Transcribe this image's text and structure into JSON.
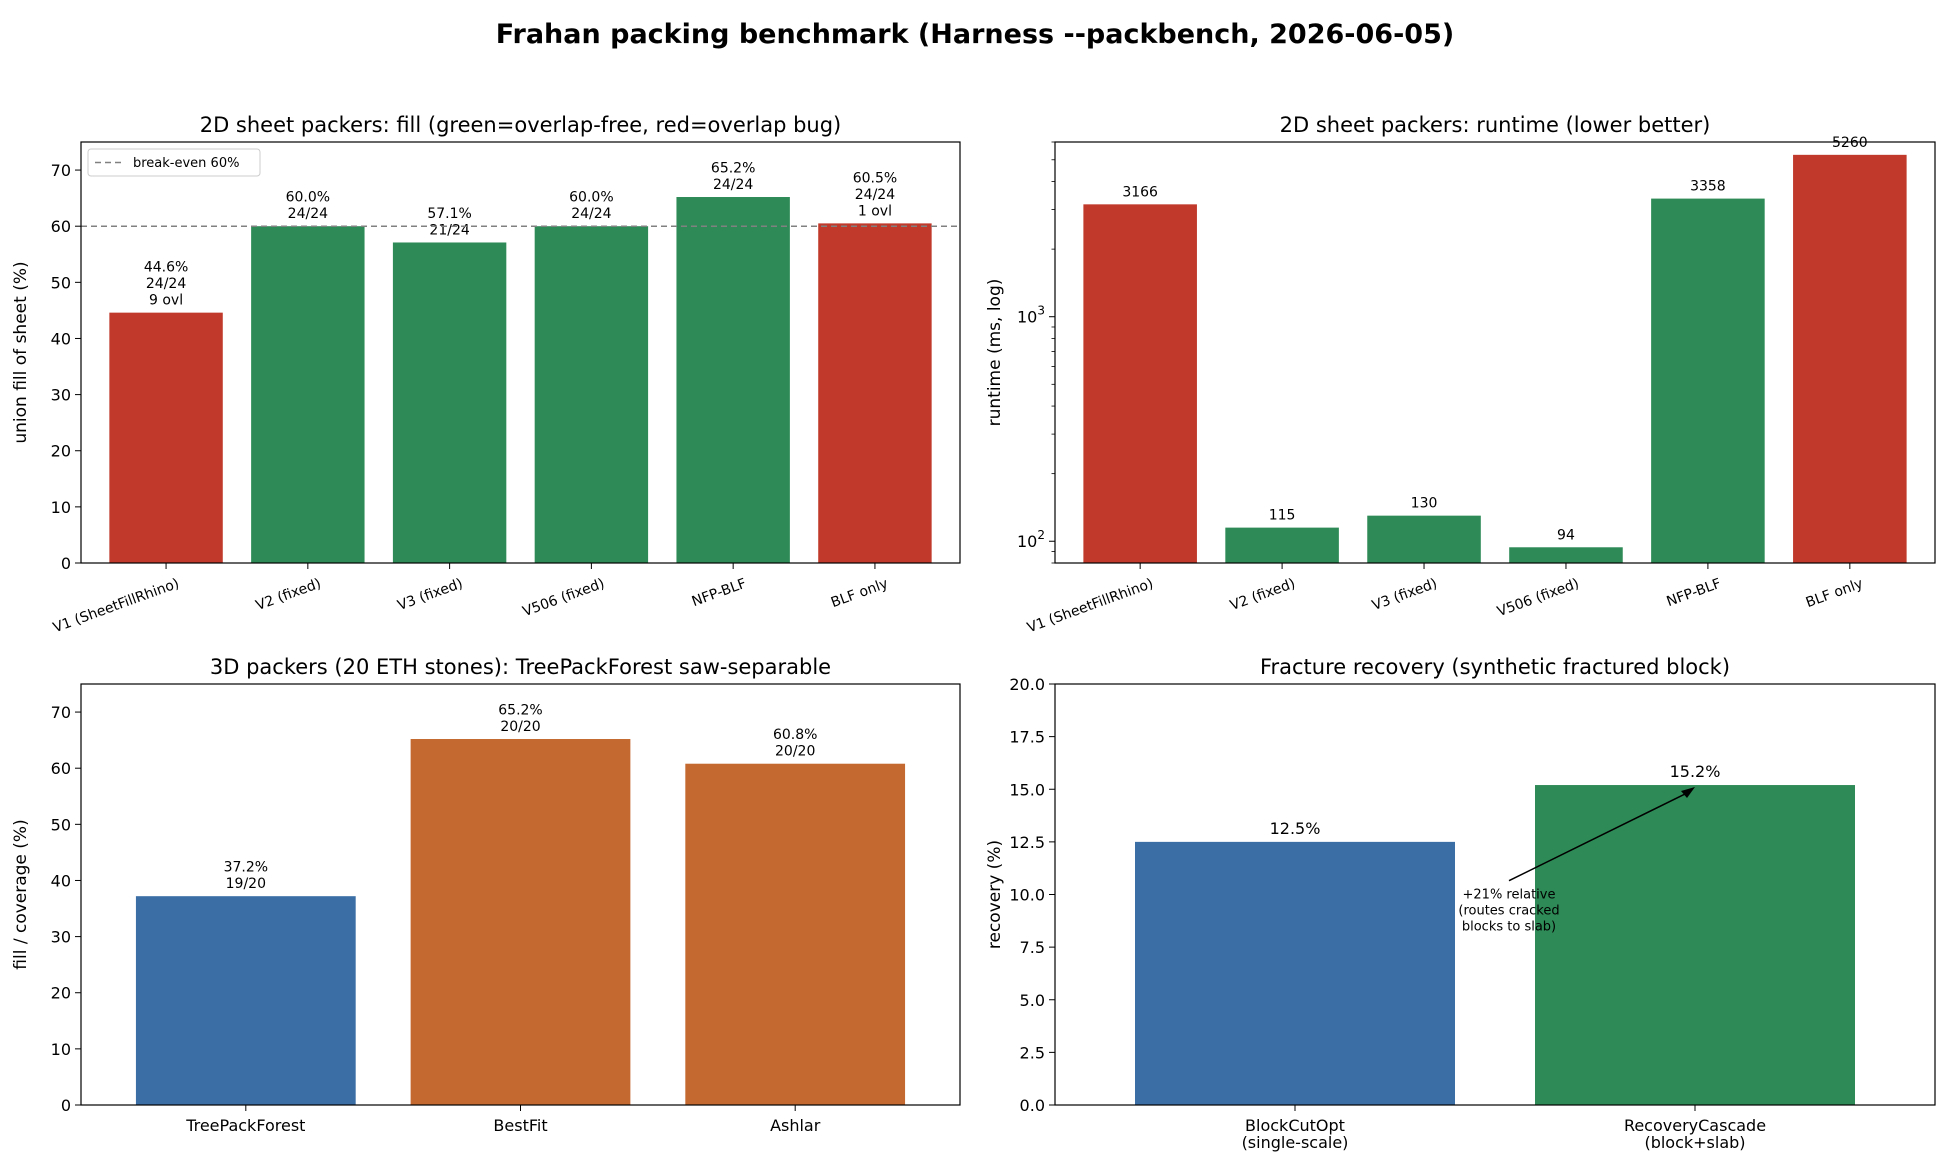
{
  "figure": {
    "suptitle": "Frahan packing benchmark (Harness --packbench, 2026-06-05)"
  },
  "colors": {
    "red": "#c0392b",
    "green": "#2e8b57",
    "blue": "#3a6ea5",
    "orange": "#c46a30",
    "refline": "#808080"
  },
  "chart_data": [
    {
      "id": "fill2d",
      "type": "bar",
      "title": "2D sheet packers: fill (green=overlap-free, red=overlap bug)",
      "xlabel": "",
      "ylabel": "union fill of sheet (%)",
      "ylim": [
        0,
        75
      ],
      "yticks": [
        0,
        10,
        20,
        30,
        40,
        50,
        60,
        70
      ],
      "categories": [
        "V1 (SheetFillRhino)",
        "V2 (fixed)",
        "V3 (fixed)",
        "V506 (fixed)",
        "NFP-BLF",
        "BLF only"
      ],
      "values": [
        44.6,
        60.0,
        57.1,
        60.0,
        65.2,
        60.5
      ],
      "bar_colors": [
        "red",
        "green",
        "green",
        "green",
        "green",
        "red"
      ],
      "labels": [
        [
          "44.6%",
          "24/24",
          "9 ovl"
        ],
        [
          "60.0%",
          "24/24"
        ],
        [
          "57.1%",
          "21/24"
        ],
        [
          "60.0%",
          "24/24"
        ],
        [
          "65.2%",
          "24/24"
        ],
        [
          "60.5%",
          "24/24",
          "1 ovl"
        ]
      ],
      "refline": {
        "value": 60,
        "label": "break-even 60%"
      },
      "legend": "upper-left",
      "xtick_rotation": -20
    },
    {
      "id": "runtime2d",
      "type": "bar",
      "title": "2D sheet packers: runtime (lower better)",
      "xlabel": "",
      "ylabel": "runtime (ms, log)",
      "yscale": "log",
      "ylim": [
        80,
        6000
      ],
      "categories": [
        "V1 (SheetFillRhino)",
        "V2 (fixed)",
        "V3 (fixed)",
        "V506 (fixed)",
        "NFP-BLF",
        "BLF only"
      ],
      "values": [
        3166,
        115,
        130,
        94,
        3358,
        5260
      ],
      "bar_colors": [
        "red",
        "green",
        "green",
        "green",
        "green",
        "red"
      ],
      "labels": [
        [
          "3166"
        ],
        [
          "115"
        ],
        [
          "130"
        ],
        [
          "94"
        ],
        [
          "3358"
        ],
        [
          "5260"
        ]
      ],
      "xtick_rotation": -20
    },
    {
      "id": "packers3d",
      "type": "bar",
      "title": "3D packers (20 ETH stones): TreePackForest saw-separable",
      "xlabel": "",
      "ylabel": "fill / coverage (%)",
      "ylim": [
        0,
        75
      ],
      "yticks": [
        0,
        10,
        20,
        30,
        40,
        50,
        60,
        70
      ],
      "categories": [
        "TreePackForest",
        "BestFit",
        "Ashlar"
      ],
      "values": [
        37.2,
        65.2,
        60.8
      ],
      "bar_colors": [
        "blue",
        "orange",
        "orange"
      ],
      "labels": [
        [
          "37.2%",
          "19/20"
        ],
        [
          "65.2%",
          "20/20"
        ],
        [
          "60.8%",
          "20/20"
        ]
      ]
    },
    {
      "id": "fracture",
      "type": "bar",
      "title": "Fracture recovery (synthetic fractured block)",
      "xlabel": "",
      "ylabel": "recovery (%)",
      "ylim": [
        0,
        20
      ],
      "yticks": [
        0.0,
        2.5,
        5.0,
        7.5,
        10.0,
        12.5,
        15.0,
        17.5,
        20.0
      ],
      "categories": [
        "BlockCutOpt\n(single-scale)",
        "RecoveryCascade\n(block+slab)"
      ],
      "values": [
        12.5,
        15.2
      ],
      "bar_colors": [
        "blue",
        "green"
      ],
      "labels": [
        [
          "12.5%"
        ],
        [
          "15.2%"
        ]
      ],
      "annotation": {
        "lines": [
          "+21% relative",
          "(routes cracked",
          "blocks to slab)"
        ],
        "target": {
          "category": 1,
          "value": 15.2
        }
      }
    }
  ]
}
